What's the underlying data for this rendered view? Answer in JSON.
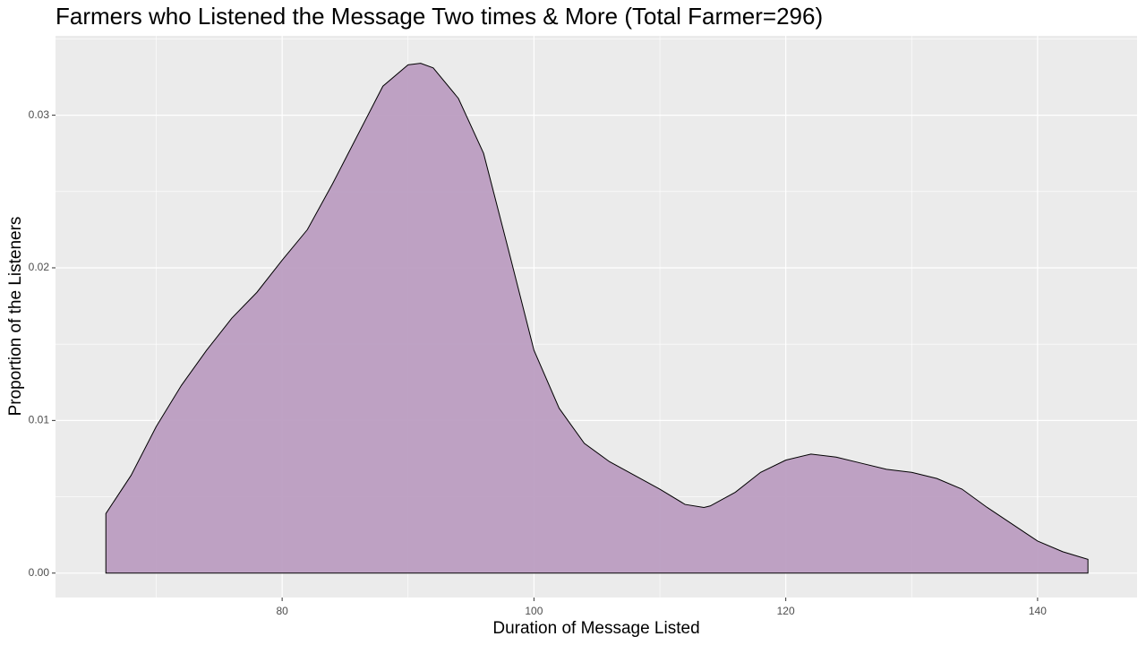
{
  "chart_data": {
    "type": "area",
    "title": "Farmers who Listened the Message Two times & More (Total Farmer=296)",
    "x_label": "Duration of Message Listed",
    "y_label": "Proportion of the Listeners",
    "x": [
      66,
      68,
      70,
      72,
      74,
      76,
      78,
      80,
      82,
      84,
      86,
      88,
      90,
      91,
      92,
      94,
      96,
      98,
      100,
      102,
      104,
      106,
      108,
      110,
      112,
      113.5,
      114,
      116,
      118,
      120,
      122,
      124,
      126,
      128,
      130,
      132,
      134,
      136,
      138,
      140,
      142,
      144
    ],
    "values": [
      0.0039,
      0.0064,
      0.0096,
      0.0123,
      0.0146,
      0.0167,
      0.0184,
      0.0205,
      0.0225,
      0.0255,
      0.0287,
      0.0319,
      0.0333,
      0.0334,
      0.0331,
      0.0311,
      0.0275,
      0.0211,
      0.0146,
      0.0108,
      0.0085,
      0.0073,
      0.0064,
      0.0055,
      0.0045,
      0.0043,
      0.0044,
      0.0053,
      0.0066,
      0.0074,
      0.0078,
      0.0076,
      0.0072,
      0.0068,
      0.0066,
      0.0062,
      0.0055,
      0.0043,
      0.0032,
      0.0021,
      0.0014,
      0.0009
    ],
    "color": "#bc9dc1",
    "xlim": [
      62.0,
      147.9
    ],
    "ylim": [
      -0.0016,
      0.0352
    ],
    "xticks": [
      80,
      100,
      120,
      140
    ],
    "yticks": [
      {
        "value": 0,
        "label": "0.00"
      },
      0.01,
      0.02,
      0.03
    ],
    "grid": true
  }
}
